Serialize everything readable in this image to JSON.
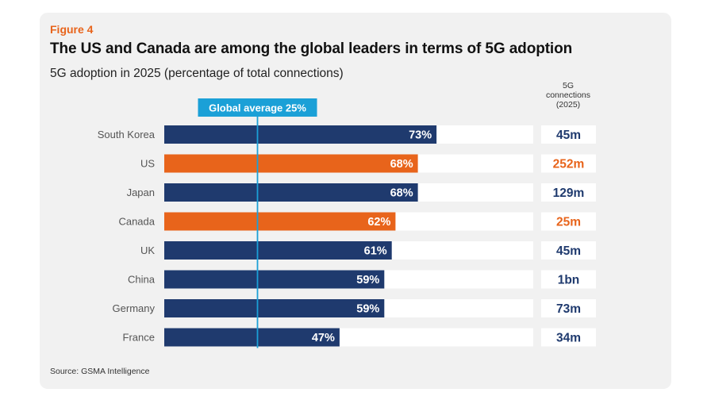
{
  "figure_label": "Figure 4",
  "title": "The US and Canada are among the global leaders in terms of 5G adoption",
  "subtitle": "5G adoption in 2025 (percentage of total connections)",
  "connections_header": [
    "5G",
    "connections",
    "(2025)"
  ],
  "source": "Source: GSMA Intelligence",
  "colors": {
    "navy": "#1f3a6e",
    "orange": "#e8641b",
    "avg_line": "#1ba0d7",
    "track": "#ffffff",
    "card": "#f1f1f1"
  },
  "chart_data": {
    "type": "bar",
    "orientation": "horizontal",
    "title": "5G adoption in 2025 (percentage of total connections)",
    "xlim": [
      0,
      100
    ],
    "reference_line": {
      "label": "Global average 25%",
      "value": 25
    },
    "categories": [
      "South Korea",
      "US",
      "Japan",
      "Canada",
      "UK",
      "China",
      "Germany",
      "France"
    ],
    "values": [
      73,
      68,
      68,
      62,
      61,
      59,
      59,
      47
    ],
    "value_labels": [
      "73%",
      "68%",
      "68%",
      "62%",
      "61%",
      "59%",
      "59%",
      "47%"
    ],
    "highlight": [
      false,
      true,
      false,
      true,
      false,
      false,
      false,
      false
    ],
    "connections": [
      "45m",
      "252m",
      "129m",
      "25m",
      "45m",
      "1bn",
      "73m",
      "34m"
    ]
  }
}
